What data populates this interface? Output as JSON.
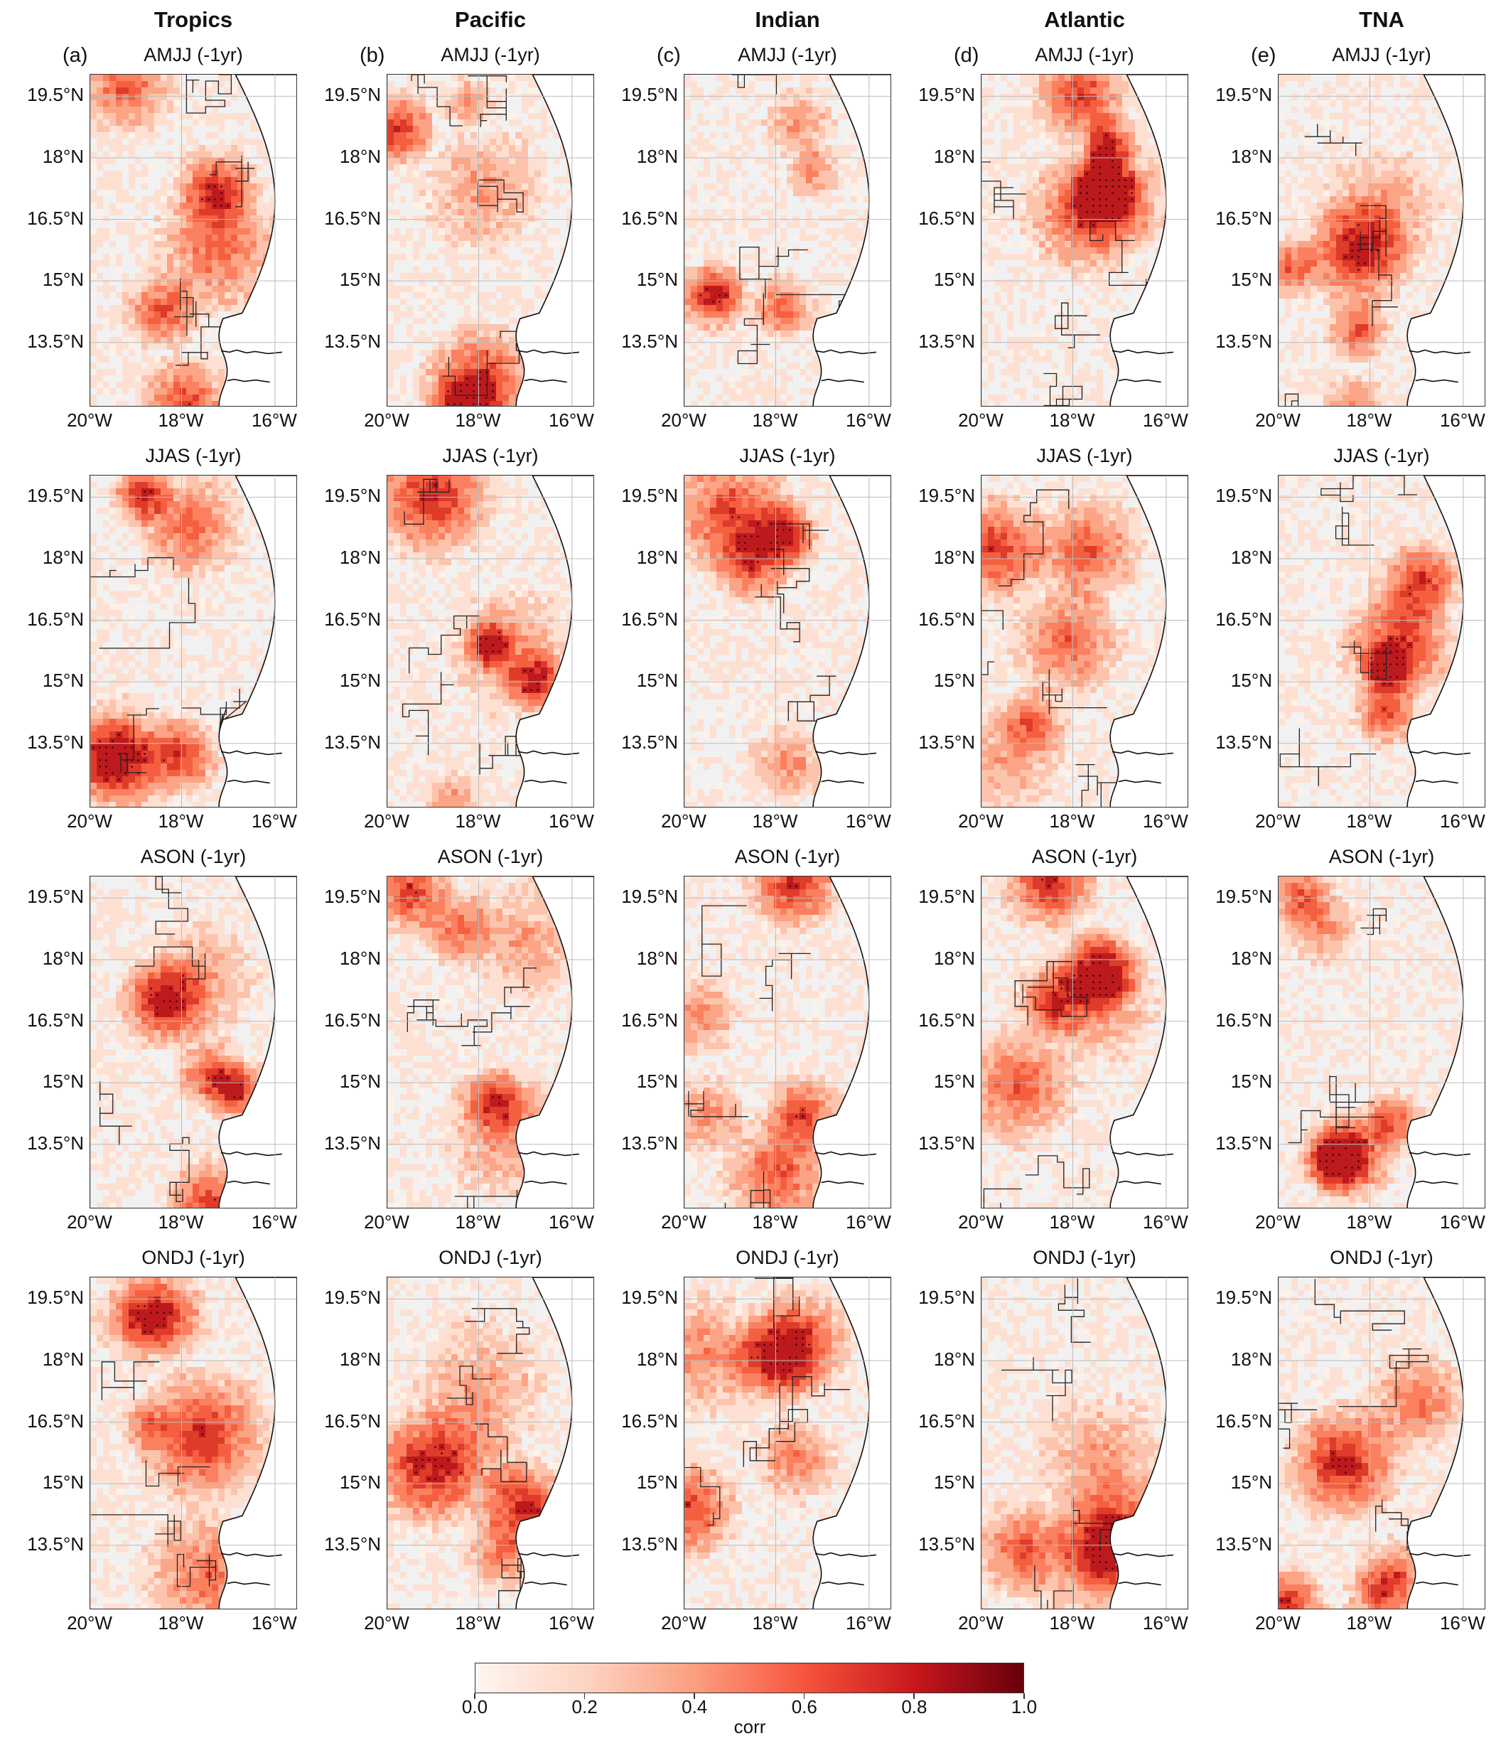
{
  "columns": [
    {
      "name": "Tropics",
      "panel_label": "(a)"
    },
    {
      "name": "Pacific",
      "panel_label": "(b)"
    },
    {
      "name": "Indian",
      "panel_label": "(c)"
    },
    {
      "name": "Atlantic",
      "panel_label": "(d)"
    },
    {
      "name": "TNA",
      "panel_label": "(e)"
    }
  ],
  "rows": [
    {
      "season": "AMJJ (-1yr)"
    },
    {
      "season": "JJAS (-1yr)"
    },
    {
      "season": "ASON (-1yr)"
    },
    {
      "season": "ONDJ (-1yr)"
    }
  ],
  "map": {
    "y_ticks": [
      "19.5°N",
      "18°N",
      "16.5°N",
      "15°N",
      "13.5°N"
    ],
    "x_ticks": [
      "20°W",
      "18°W",
      "16°W"
    ],
    "lat_range": [
      12,
      20
    ],
    "lon_range": [
      -20,
      -15.5
    ]
  },
  "colorbar": {
    "label": "corr",
    "ticks": [
      "0.0",
      "0.2",
      "0.4",
      "0.6",
      "0.8",
      "1.0"
    ],
    "range": [
      0.0,
      1.0
    ],
    "colormap": "Reds"
  },
  "colors": {
    "land": "#f0f0f0",
    "grid": "#bbbbbb",
    "contour": "#222222",
    "significance_dots": "#3a0008"
  }
}
